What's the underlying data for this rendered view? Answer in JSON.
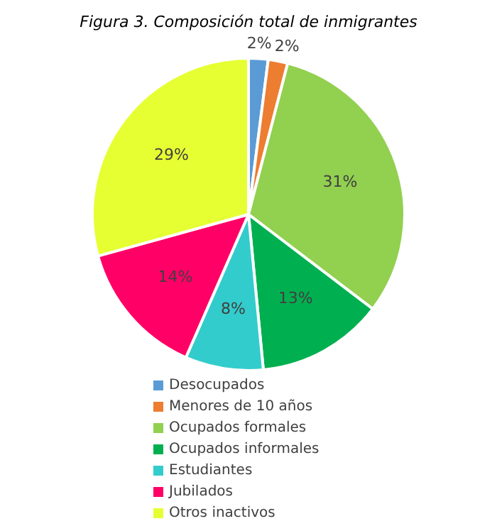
{
  "chart_data": {
    "type": "pie",
    "title": "Figura 3. Composición total de inmigrantes",
    "categories": [
      "Desocupados",
      "Menores de 10 años",
      "Ocupados formales",
      "Ocupados informales",
      "Estudiantes",
      "Jubilados",
      "Otros inactivos"
    ],
    "values": [
      2,
      2,
      31,
      13,
      8,
      14,
      29
    ],
    "colors": [
      "#5b9bd5",
      "#ed7d31",
      "#92d050",
      "#00b050",
      "#33cccc",
      "#ff0066",
      "#e6ff33"
    ],
    "value_labels": [
      "2%",
      "2%",
      "31%",
      "13%",
      "8%",
      "14%",
      "29%"
    ],
    "legend": "bottom"
  }
}
